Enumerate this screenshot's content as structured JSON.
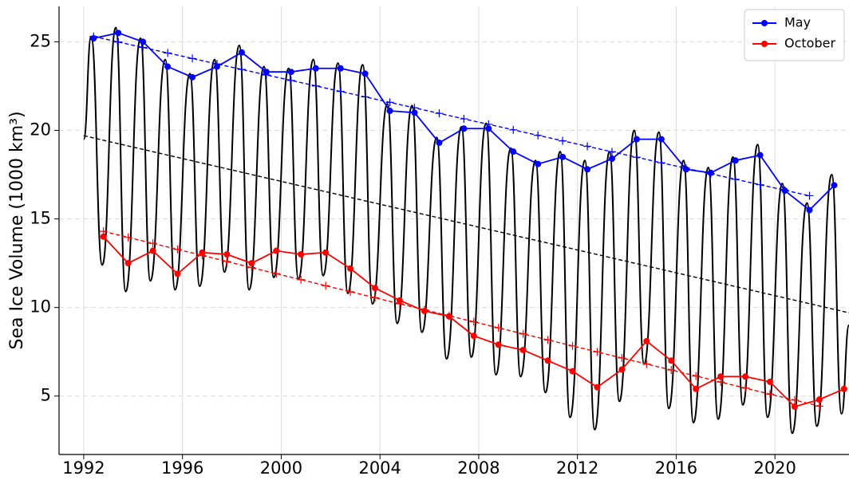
{
  "chart_data": {
    "type": "line",
    "ylabel": "Sea Ice Volume (1000 km³)",
    "xlim": [
      1991,
      2023
    ],
    "ylim": [
      1.7,
      27
    ],
    "xticks": [
      1992,
      1996,
      2000,
      2004,
      2008,
      2012,
      2016,
      2020
    ],
    "yticks": [
      5,
      10,
      15,
      20,
      25
    ],
    "grid": true,
    "legend": "upper right",
    "series": [
      {
        "color": "#000000",
        "style": "smooth",
        "x": [
          1992.0,
          1992.3,
          1992.75,
          1993.3,
          1993.7,
          1994.3,
          1994.7,
          1995.3,
          1995.7,
          1996.3,
          1996.7,
          1997.3,
          1997.7,
          1998.3,
          1998.7,
          1999.3,
          1999.7,
          2000.3,
          2000.7,
          2001.3,
          2001.7,
          2002.3,
          2002.7,
          2003.3,
          2003.7,
          2004.3,
          2004.7,
          2005.3,
          2005.7,
          2006.3,
          2006.7,
          2007.3,
          2007.7,
          2008.3,
          2008.7,
          2009.3,
          2009.7,
          2010.3,
          2010.7,
          2011.3,
          2011.7,
          2012.3,
          2012.7,
          2013.3,
          2013.7,
          2014.3,
          2014.7,
          2015.3,
          2015.7,
          2016.3,
          2016.7,
          2017.3,
          2017.7,
          2018.3,
          2018.7,
          2019.3,
          2019.7,
          2020.3,
          2020.7,
          2021.3,
          2021.7,
          2022.3,
          2022.7,
          2023.0
        ],
        "values": [
          19.5,
          25.3,
          12.4,
          25.8,
          10.9,
          25.2,
          11.5,
          24.0,
          11.0,
          23.2,
          11.2,
          24.0,
          12.0,
          24.8,
          11.0,
          23.6,
          11.7,
          23.5,
          11.6,
          24.0,
          11.8,
          23.8,
          10.8,
          23.7,
          10.2,
          21.5,
          9.1,
          21.4,
          8.6,
          19.6,
          7.1,
          20.2,
          7.2,
          20.4,
          6.2,
          19.0,
          6.1,
          18.3,
          5.2,
          18.8,
          3.8,
          18.3,
          3.1,
          18.8,
          4.7,
          20.0,
          6.8,
          19.9,
          4.3,
          18.3,
          3.5,
          17.9,
          3.7,
          18.5,
          4.5,
          19.2,
          3.8,
          17.0,
          2.9,
          15.9,
          3.3,
          17.5,
          4.0,
          9.0
        ]
      },
      {
        "color": "#000000",
        "style": "dashed",
        "x": [
          1992,
          2023
        ],
        "values": [
          19.7,
          9.7
        ]
      },
      {
        "color": "#0000ff",
        "style": "dashed",
        "marker": "plus",
        "x": [
          1992.4,
          1993.4,
          1994.4,
          1995.4,
          1996.4,
          1997.4,
          1998.4,
          1999.4,
          2000.4,
          2001.4,
          2002.4,
          2003.4,
          2004.4,
          2005.4,
          2006.4,
          2007.4,
          2008.4,
          2009.4,
          2010.4,
          2011.4,
          2012.4,
          2013.4,
          2014.4,
          2015.4,
          2016.4,
          2017.4,
          2018.4,
          2019.4,
          2020.4,
          2021.4
        ],
        "values": [
          25.3,
          24.99,
          24.68,
          24.37,
          24.06,
          23.75,
          23.44,
          23.13,
          22.82,
          22.51,
          22.2,
          21.89,
          21.58,
          21.27,
          20.96,
          20.65,
          20.34,
          20.03,
          19.72,
          19.41,
          19.1,
          18.79,
          18.48,
          18.17,
          17.86,
          17.55,
          17.24,
          16.93,
          16.62,
          16.31
        ]
      },
      {
        "color": "#ff0000",
        "style": "dashed",
        "marker": "plus",
        "x": [
          1992.8,
          1993.8,
          1994.8,
          1995.8,
          1996.8,
          1997.8,
          1998.8,
          1999.8,
          2000.8,
          2001.8,
          2002.8,
          2003.8,
          2004.8,
          2005.8,
          2006.8,
          2007.8,
          2008.8,
          2009.8,
          2010.8,
          2011.8,
          2012.8,
          2013.8,
          2014.8,
          2015.8,
          2016.8,
          2017.8,
          2018.8,
          2019.8,
          2020.8,
          2021.8
        ],
        "values": [
          14.3,
          13.96,
          13.62,
          13.28,
          12.94,
          12.6,
          12.25,
          11.91,
          11.57,
          11.23,
          10.89,
          10.55,
          10.21,
          9.87,
          9.53,
          9.19,
          8.85,
          8.51,
          8.17,
          7.83,
          7.49,
          7.15,
          6.81,
          6.47,
          6.13,
          5.79,
          5.45,
          5.11,
          4.77,
          4.43
        ]
      },
      {
        "name": "May",
        "color": "#0000ff",
        "style": "solid",
        "marker": "circle",
        "x": [
          1992.4,
          1993.4,
          1994.4,
          1995.4,
          1996.4,
          1997.4,
          1998.4,
          1999.4,
          2000.4,
          2001.4,
          2002.4,
          2003.4,
          2004.4,
          2005.4,
          2006.4,
          2007.4,
          2008.4,
          2009.4,
          2010.4,
          2011.4,
          2012.4,
          2013.4,
          2014.4,
          2015.4,
          2016.4,
          2017.4,
          2018.4,
          2019.4,
          2020.4,
          2021.4,
          2022.4
        ],
        "values": [
          25.2,
          25.5,
          25.0,
          23.6,
          23.0,
          23.6,
          24.4,
          23.3,
          23.3,
          23.5,
          23.5,
          23.2,
          21.1,
          21.0,
          19.3,
          20.1,
          20.1,
          18.8,
          18.1,
          18.5,
          17.8,
          18.4,
          19.5,
          19.5,
          17.8,
          17.6,
          18.3,
          18.6,
          16.6,
          15.5,
          16.9
        ]
      },
      {
        "name": "October",
        "color": "#ff0000",
        "style": "solid",
        "marker": "circle",
        "x": [
          1992.8,
          1993.8,
          1994.8,
          1995.8,
          1996.8,
          1997.8,
          1998.8,
          1999.8,
          2000.8,
          2001.8,
          2002.8,
          2003.8,
          2004.8,
          2005.8,
          2006.8,
          2007.8,
          2008.8,
          2009.8,
          2010.8,
          2011.8,
          2012.8,
          2013.8,
          2014.8,
          2015.8,
          2016.8,
          2017.8,
          2018.8,
          2019.8,
          2020.8,
          2021.8,
          2022.8
        ],
        "values": [
          14.0,
          12.5,
          13.2,
          11.9,
          13.1,
          13.0,
          12.5,
          13.2,
          13.0,
          13.1,
          12.2,
          11.1,
          10.4,
          9.8,
          9.5,
          8.4,
          7.9,
          7.6,
          7.0,
          6.4,
          5.5,
          6.5,
          8.1,
          7.0,
          5.4,
          6.1,
          6.1,
          5.8,
          4.4,
          4.8,
          5.4
        ]
      }
    ]
  }
}
